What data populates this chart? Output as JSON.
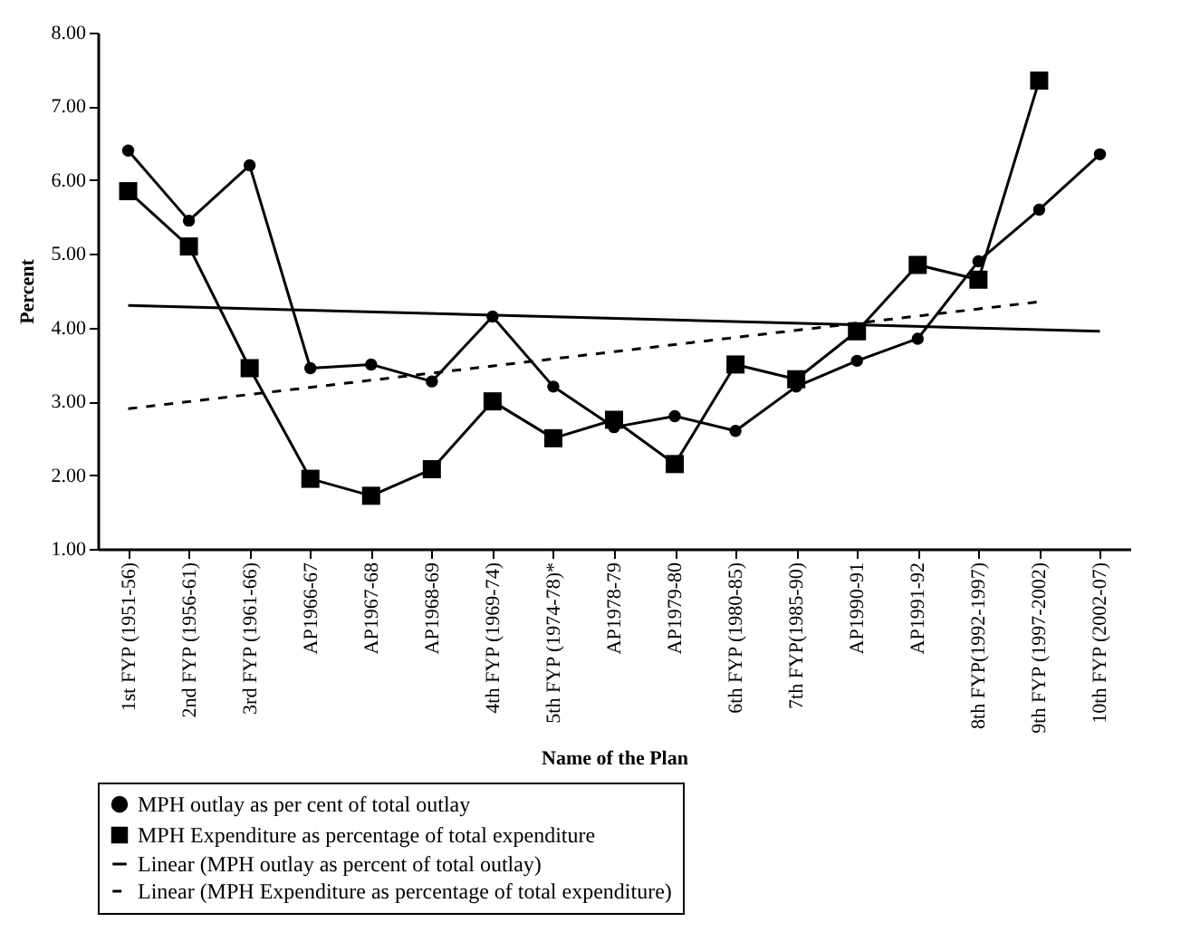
{
  "chart_data": {
    "type": "line",
    "xlabel": "Name of the Plan",
    "ylabel": "Percent",
    "categories": [
      "1st FYP (1951-56)",
      "2nd FYP (1956-61)",
      "3rd FYP (1961-66)",
      "AP1966-67",
      "AP1967-68",
      "AP1968-69",
      "4th FYP (1969-74)",
      "5th FYP (1974-78)*",
      "AP1978-79",
      "AP1979-80",
      "6th FYP (1980-85)",
      "7th FYP(1985-90)",
      "AP1990-91",
      "AP1991-92",
      "8th FYP(1992-1997)",
      "9th FYP (1997-2002)",
      "10th FYP (2002-07)"
    ],
    "ylim": [
      1,
      8
    ],
    "yticks": [
      {
        "value": 1,
        "label": "1.00"
      },
      {
        "value": 2,
        "label": "2.00"
      },
      {
        "value": 3,
        "label": "3.00"
      },
      {
        "value": 4,
        "label": "4.00"
      },
      {
        "value": 5,
        "label": "5.00"
      },
      {
        "value": 6,
        "label": "6.00"
      },
      {
        "value": 7,
        "label": "7.00"
      },
      {
        "value": 8,
        "label": "8.00"
      }
    ],
    "legend": "bottom",
    "series": [
      {
        "name": "MPH outlay as  per cent of total outlay",
        "color": "#000000",
        "marker": "circle",
        "line_style": "solid",
        "values": [
          6.4,
          5.45,
          6.2,
          3.45,
          3.5,
          3.27,
          4.15,
          3.2,
          2.65,
          2.8,
          2.6,
          3.2,
          3.55,
          3.85,
          4.9,
          5.6,
          6.35
        ]
      },
      {
        "name": "MPH Expenditure as percentage of total expenditure",
        "color": "#000000",
        "marker": "square",
        "line_style": "solid",
        "values": [
          5.85,
          5.1,
          3.45,
          1.95,
          1.72,
          2.08,
          3.0,
          2.5,
          2.75,
          2.15,
          3.5,
          3.3,
          3.95,
          4.85,
          4.65,
          7.35,
          null
        ]
      },
      {
        "name": "Linear (MPH outlay as percent of total outlay)",
        "color": "#000000",
        "marker": "none",
        "line_style": "solid",
        "x": [
          "1st FYP (1951-56)",
          "10th FYP (2002-07)"
        ],
        "values": [
          4.3,
          3.95
        ]
      },
      {
        "name": "Linear (MPH Expenditure as percentage of total expenditure)",
        "color": "#000000",
        "marker": "none",
        "line_style": "dashed",
        "x": [
          "1st FYP (1951-56)",
          "9th FYP (1997-2002)"
        ],
        "values": [
          2.9,
          4.35
        ]
      }
    ]
  }
}
